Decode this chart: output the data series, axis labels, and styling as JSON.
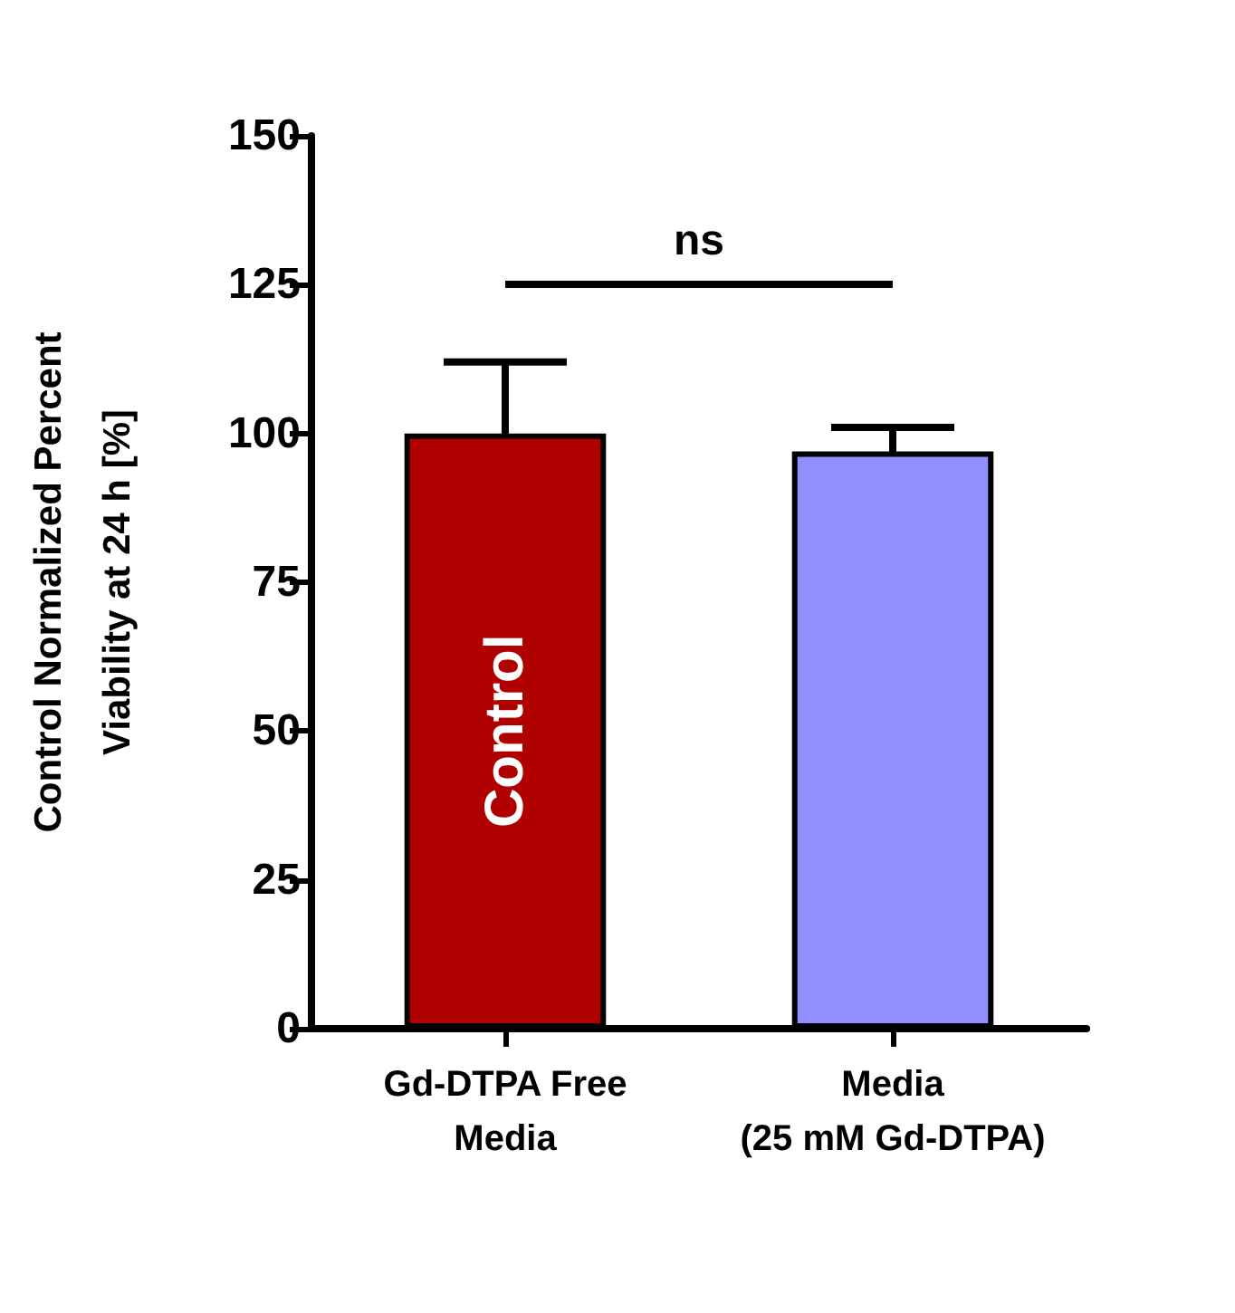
{
  "chart_data": {
    "type": "bar",
    "ylabel": "Control Normalized Percent\nViability at 24 h [%]",
    "categories": [
      "Gd-DTPA Free\nMedia",
      "Media\n(25 mM Gd-DTPA)"
    ],
    "values": [
      100,
      97
    ],
    "colors": [
      "#b00000",
      "#8f8fff"
    ],
    "errors": [
      12,
      4
    ],
    "ylim": [
      0,
      150
    ],
    "yticks": [
      0,
      25,
      50,
      75,
      100,
      125,
      150
    ],
    "grid": false,
    "annotations": [
      "ns",
      "Control"
    ]
  }
}
